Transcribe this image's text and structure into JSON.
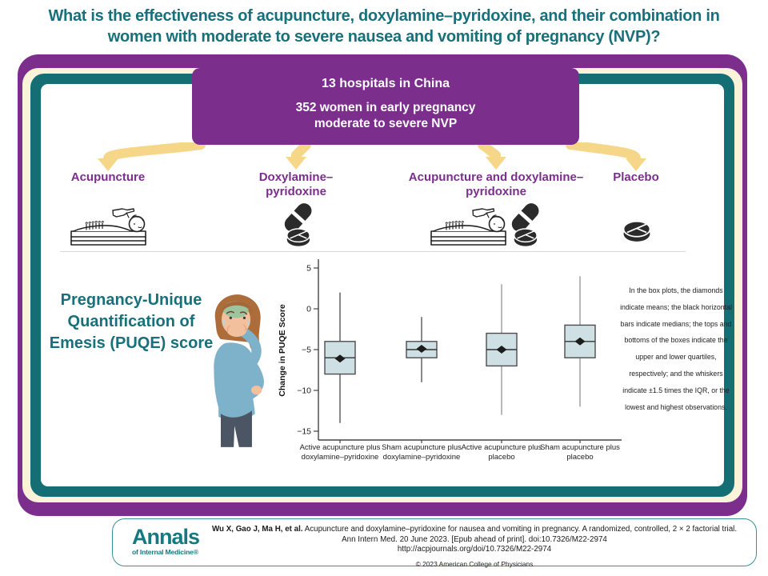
{
  "title": {
    "line1": "What is the effectiveness of acupuncture, doxylamine–pyridoxine, and their combination in",
    "line2": "women with moderate to severe nausea and vomiting of pregnancy (NVP)?"
  },
  "header_box": {
    "line1": "13 hospitals in China",
    "line2": "352 women in early pregnancy",
    "line3": "moderate to severe NVP"
  },
  "groups": [
    {
      "label": "Acupuncture",
      "icon": "acupuncture-icon"
    },
    {
      "label": "Doxylamine–pyridoxine",
      "icon": "pills-icon"
    },
    {
      "label": "Acupuncture and doxylamine–pyridoxine",
      "icon": "acupuncture-plus-pills-icon"
    },
    {
      "label": "Placebo",
      "icon": "tablet-icon"
    }
  ],
  "outcome_label": "Pregnancy-Unique Quantification of Emesis (PUQE) score",
  "chart_data": {
    "type": "box",
    "ylabel": "Change in PUQE Score",
    "ylim": [
      -16,
      6
    ],
    "yticks": [
      5,
      0,
      -5,
      -10,
      -15
    ],
    "grid": false,
    "categories": [
      "Active acupuncture plus doxylamine–pyridoxine",
      "Sham acupuncture plus doxylamine–pyridoxine",
      "Active acupuncture plus placebo",
      "Sham acupuncture plus placebo"
    ],
    "series": [
      {
        "name": "Active acupuncture plus doxylamine–pyridoxine",
        "whisker_low": -14,
        "q1": -8,
        "median": -6,
        "mean": -6.1,
        "q3": -4,
        "whisker_high": 2
      },
      {
        "name": "Sham acupuncture plus doxylamine–pyridoxine",
        "whisker_low": -9,
        "q1": -6,
        "median": -5,
        "mean": -4.9,
        "q3": -4,
        "whisker_high": -1
      },
      {
        "name": "Active acupuncture plus placebo",
        "whisker_low": -13,
        "q1": -7,
        "median": -5,
        "mean": -5,
        "q3": -3,
        "whisker_high": 3
      },
      {
        "name": "Sham acupuncture plus placebo",
        "whisker_low": -12,
        "q1": -6,
        "median": -4,
        "mean": -4,
        "q3": -2,
        "whisker_high": 4
      }
    ],
    "box_fill": "#cfe0e5",
    "box_stroke": "#4d4d4d",
    "whisker_colors": [
      "#555555",
      "#555555",
      "#999999",
      "#999999"
    ]
  },
  "note": "In the box plots, the diamonds indicate means; the black horizontal bars indicate medians; the tops and bottoms of the boxes indicate the upper and lower quartiles, respectively; and the whiskers indicate ±1.5 times the IQR, or the lowest and highest observations.",
  "footer": {
    "authors": "Wu X, Gao J, Ma H, et al.",
    "article_title": " Acupuncture and doxylamine–pyridoxine for nausea and vomiting in pregnancy. A randomized, controlled, 2 × 2 factorial trial.",
    "journal_line": "Ann Intern Med. 20 June 2023. [Epub ahead of print]. doi:10.7326/M22-2974",
    "url": "http://acpjournals.org/doi/10.7326/M22-2974",
    "copyright": "© 2023 American College of Physicians"
  },
  "logo": {
    "name": "Annals",
    "subtitle": "of Internal Medicine®"
  },
  "colors": {
    "title_teal": "#17707a",
    "frame_purple": "#7b2e8c",
    "frame_cream": "#fbf2da",
    "frame_teal": "#156e74",
    "arrow_yellow": "#f6d689",
    "box_fill": "#cfe0e5"
  }
}
